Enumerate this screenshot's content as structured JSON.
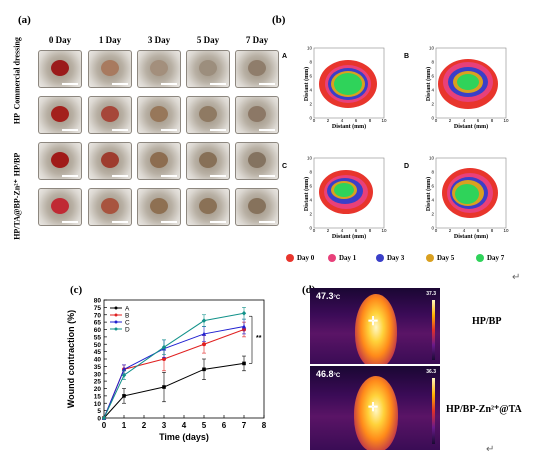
{
  "panel_a": {
    "label": "(a)",
    "columns": [
      "0 Day",
      "1 Day",
      "3 Day",
      "5 Day",
      "7 Day"
    ],
    "rows": [
      "Commercial dressing",
      "HP",
      "HP/BP",
      "HP/TA@BP-Zn²⁺"
    ]
  },
  "panel_b": {
    "label": "(b)",
    "subplots": [
      "A",
      "B",
      "C",
      "D"
    ],
    "xlabel": "Distant (mm)",
    "ylabel": "Distant (mm)",
    "ticks": [
      "0",
      "2",
      "4",
      "6",
      "8",
      "10"
    ],
    "legend": [
      {
        "name": "Day 0",
        "color": "#e8352c"
      },
      {
        "name": "Day 1",
        "color": "#e8407a"
      },
      {
        "name": "Day 3",
        "color": "#3a3fc8"
      },
      {
        "name": "Day 5",
        "color": "#d9a020"
      },
      {
        "name": "Day 7",
        "color": "#2fd35a"
      }
    ],
    "return_mark": "↵"
  },
  "panel_c": {
    "label": "(c)",
    "significance": "**",
    "chart_data": {
      "type": "line",
      "xlabel": "Time (days)",
      "ylabel": "Wound contraction (%)",
      "xlim": [
        0,
        8
      ],
      "ylim": [
        0,
        80
      ],
      "xticks": [
        0,
        1,
        2,
        3,
        4,
        5,
        6,
        7,
        8
      ],
      "yticks": [
        0,
        5,
        10,
        15,
        20,
        25,
        30,
        35,
        40,
        45,
        50,
        55,
        60,
        65,
        70,
        75,
        80
      ],
      "x": [
        0,
        1,
        3,
        5,
        7
      ],
      "legend_position": "top-left",
      "series": [
        {
          "name": "A",
          "color": "#000000",
          "marker": "square",
          "values": [
            0,
            15,
            21,
            33,
            37
          ],
          "err": [
            0,
            5,
            10,
            7,
            5
          ]
        },
        {
          "name": "B",
          "color": "#e02020",
          "marker": "circle",
          "values": [
            0,
            33,
            40,
            50,
            60
          ],
          "err": [
            0,
            3,
            8,
            6,
            5
          ]
        },
        {
          "name": "C",
          "color": "#2020d0",
          "marker": "triangle",
          "values": [
            0,
            33,
            47,
            57,
            62
          ],
          "err": [
            0,
            3,
            6,
            5,
            5
          ]
        },
        {
          "name": "D",
          "color": "#12928a",
          "marker": "diamond",
          "values": [
            0,
            29,
            48,
            66,
            71
          ],
          "err": [
            0,
            3,
            5,
            4,
            4
          ]
        }
      ]
    }
  },
  "panel_d": {
    "label": "(d)",
    "images": [
      {
        "temp": "47.3",
        "unit": "°C",
        "scale_max": "37.3",
        "caption": "HP/BP"
      },
      {
        "temp": "46.8",
        "unit": "°C",
        "scale_max": "36.3",
        "caption": "HP/BP-Zn²⁺@TA"
      }
    ],
    "return_mark": "↵"
  }
}
